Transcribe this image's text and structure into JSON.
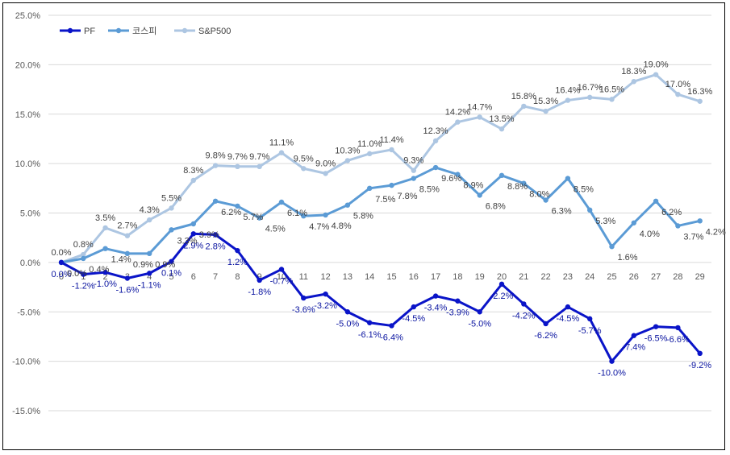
{
  "chart_data": {
    "type": "line",
    "title": "",
    "xlabel": "",
    "ylabel": "",
    "ylim": [
      -15,
      25
    ],
    "y_ticks": [
      "25.0%",
      "20.0%",
      "15.0%",
      "10.0%",
      "5.0%",
      "0.0%",
      "-5.0%",
      "-10.0%",
      "-15.0%"
    ],
    "y_tick_values": [
      25,
      20,
      15,
      10,
      5,
      0,
      -5,
      -10,
      -15
    ],
    "x": [
      0,
      1,
      2,
      3,
      4,
      5,
      6,
      7,
      8,
      9,
      10,
      11,
      12,
      13,
      14,
      15,
      16,
      17,
      18,
      19,
      20,
      21,
      22,
      23,
      24,
      25,
      26,
      27,
      28,
      29
    ],
    "x_tick_labels": [
      "0",
      "1",
      "2",
      "3",
      "4",
      "5",
      "6",
      "7",
      "8",
      "9",
      "10",
      "11",
      "12",
      "13",
      "14",
      "15",
      "16",
      "17",
      "18",
      "19",
      "20",
      "21",
      "22",
      "23",
      "24",
      "25",
      "26",
      "27",
      "28",
      "29"
    ],
    "legend_position": "top-left",
    "grid": true,
    "series": [
      {
        "name": "PF",
        "color": "#0a14c8",
        "label_color": "#0a14a0",
        "label_position": "below",
        "values": [
          0.0,
          -1.2,
          -1.0,
          -1.6,
          -1.1,
          0.1,
          2.9,
          2.8,
          1.2,
          -1.8,
          -0.7,
          -3.6,
          -3.2,
          -5.0,
          -6.1,
          -6.4,
          -4.5,
          -3.4,
          -3.9,
          -5.0,
          -2.2,
          -4.2,
          -6.2,
          -4.5,
          -5.7,
          -10.0,
          -7.4,
          -6.5,
          -6.6,
          -9.2
        ],
        "labels": [
          "0.0%",
          "-1.2%",
          "-1.0%",
          "-1.6%",
          "-1.1%",
          "0.1%",
          "2.9%",
          "2.8%",
          "1.2%",
          "-1.8%",
          "-0.7%",
          "-3.6%",
          "-3.2%",
          "-5.0%",
          "-6.1%",
          "-6.4%",
          "-4.5%",
          "-3.4%",
          "-3.9%",
          "-5.0%",
          "-2.2%",
          "-4.2%",
          "-6.2%",
          "-4.5%",
          "-5.7%",
          "-10.0%",
          "-7.4%",
          "-6.5%",
          "-6.6%",
          "-9.2%"
        ]
      },
      {
        "name": "코스피",
        "color": "#5b9bd5",
        "label_color": "#404040",
        "label_position": "right",
        "values": [
          0.0,
          0.4,
          1.4,
          0.9,
          0.9,
          3.3,
          3.9,
          6.2,
          5.7,
          4.5,
          6.1,
          4.7,
          4.8,
          5.8,
          7.5,
          7.8,
          8.5,
          9.6,
          8.9,
          6.8,
          8.8,
          8.0,
          6.3,
          8.5,
          5.3,
          1.6,
          4.0,
          6.2,
          3.7,
          4.2
        ],
        "labels": [
          "0.0%",
          "0.4%",
          "1.4%",
          "0.9%",
          "0.9%",
          "3.3%",
          "3.9%",
          "6.2%",
          "5.7%",
          "4.5%",
          "6.1%",
          "4.7%",
          "4.8%",
          "5.8%",
          "7.5%",
          "7.8%",
          "8.5%",
          "9.6%",
          "8.9%",
          "6.8%",
          "8.8%",
          "8.0%",
          "6.3%",
          "8.5%",
          "5.3%",
          "1.6%",
          "4.0%",
          "6.2%",
          "3.7%",
          "4.2%"
        ]
      },
      {
        "name": "S&P500",
        "color": "#adc6e2",
        "label_color": "#404040",
        "label_position": "above",
        "values": [
          0.0,
          0.8,
          3.5,
          2.7,
          4.3,
          5.5,
          8.3,
          9.8,
          9.7,
          9.7,
          11.1,
          9.5,
          9.0,
          10.3,
          11.0,
          11.4,
          9.3,
          12.3,
          14.2,
          14.7,
          13.5,
          15.8,
          15.3,
          16.4,
          16.7,
          16.5,
          18.3,
          19.0,
          17.0,
          16.3
        ],
        "labels": [
          "0.0%",
          "0.8%",
          "3.5%",
          "2.7%",
          "4.3%",
          "5.5%",
          "8.3%",
          "9.8%",
          "9.7%",
          "9.7%",
          "11.1%",
          "9.5%",
          "9.0%",
          "10.3%",
          "11.0%",
          "11.4%",
          "9.3%",
          "12.3%",
          "14.2%",
          "14.7%",
          "13.5%",
          "15.8%",
          "15.3%",
          "16.4%",
          "16.7%",
          "16.5%",
          "18.3%",
          "19.0%",
          "17.0%",
          "16.3%"
        ]
      }
    ]
  }
}
